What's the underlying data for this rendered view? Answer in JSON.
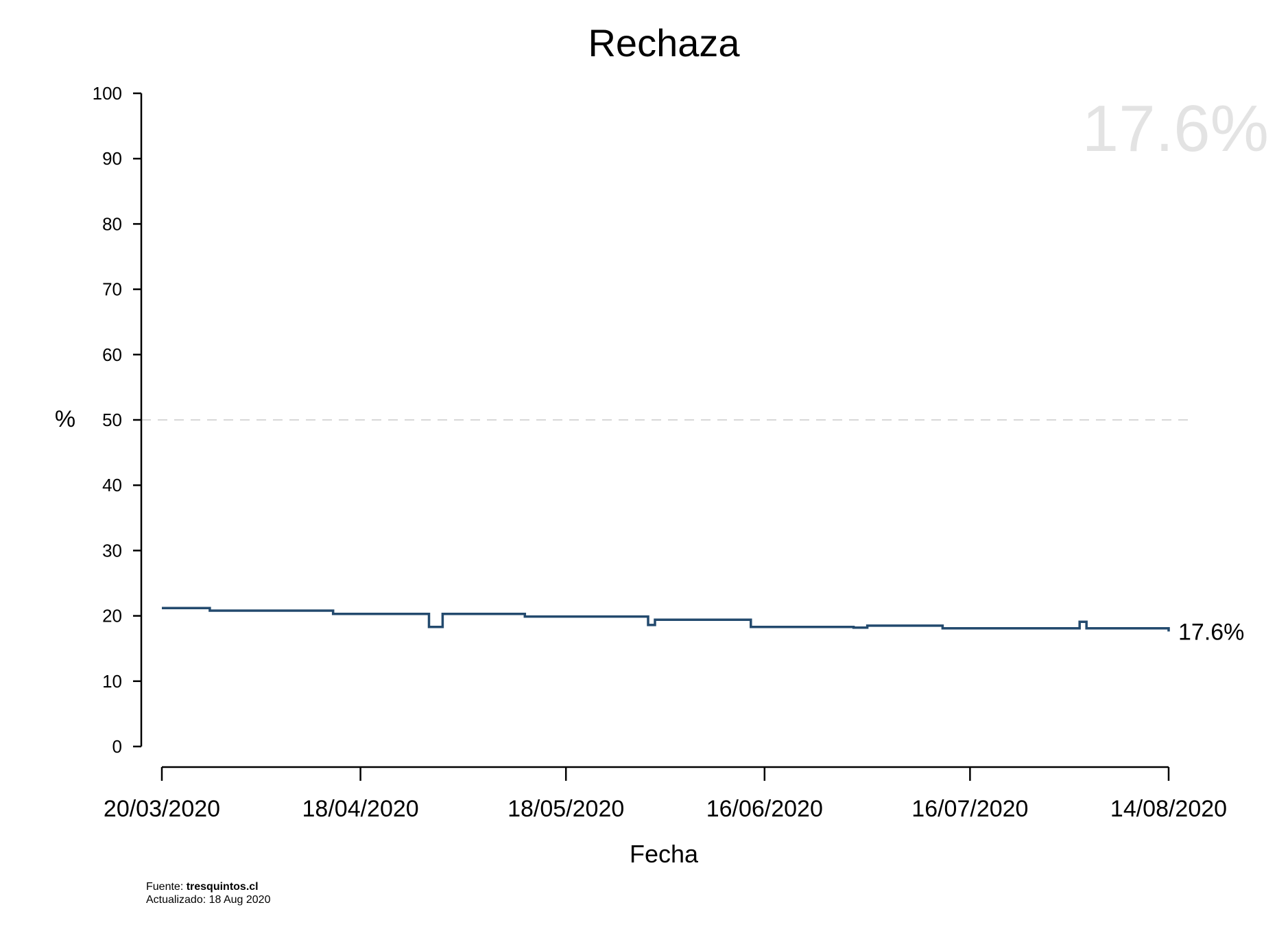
{
  "chart_data": {
    "type": "line",
    "step": true,
    "title": "Rechaza",
    "xlabel": "Fecha",
    "ylabel": "%",
    "ylim": [
      0,
      100
    ],
    "xlim": [
      "2020-03-20",
      "2020-08-14"
    ],
    "yticks": [
      0,
      10,
      20,
      30,
      40,
      50,
      60,
      70,
      80,
      90,
      100
    ],
    "xticks": [
      "2020-03-20",
      "2020-04-18",
      "2020-05-18",
      "2020-06-16",
      "2020-07-16",
      "2020-08-14"
    ],
    "xtick_labels": [
      "20/03/2020",
      "18/04/2020",
      "18/05/2020",
      "16/06/2020",
      "16/07/2020",
      "14/08/2020"
    ],
    "reference_line": {
      "y": 50,
      "style": "dashed",
      "color": "#cccccc"
    },
    "series": [
      {
        "color": "#234a6e",
        "points": [
          {
            "x": "2020-03-20",
            "y": 21.2
          },
          {
            "x": "2020-03-27",
            "y": 20.8
          },
          {
            "x": "2020-04-14",
            "y": 20.3
          },
          {
            "x": "2020-04-28",
            "y": 18.3
          },
          {
            "x": "2020-04-30",
            "y": 20.3
          },
          {
            "x": "2020-05-12",
            "y": 19.9
          },
          {
            "x": "2020-05-30",
            "y": 18.6
          },
          {
            "x": "2020-05-31",
            "y": 19.4
          },
          {
            "x": "2020-06-14",
            "y": 18.3
          },
          {
            "x": "2020-06-29",
            "y": 18.2
          },
          {
            "x": "2020-07-01",
            "y": 18.5
          },
          {
            "x": "2020-07-12",
            "y": 18.1
          },
          {
            "x": "2020-08-01",
            "y": 19.1
          },
          {
            "x": "2020-08-02",
            "y": 18.1
          },
          {
            "x": "2020-08-14",
            "y": 17.6
          }
        ]
      }
    ],
    "end_label": "17.6%",
    "watermark": "17.6%",
    "grid": false
  },
  "footer": {
    "source_prefix": "Fuente: ",
    "source_name": "tresquintos.cl",
    "updated": "Actualizado: 18 Aug 2020"
  }
}
